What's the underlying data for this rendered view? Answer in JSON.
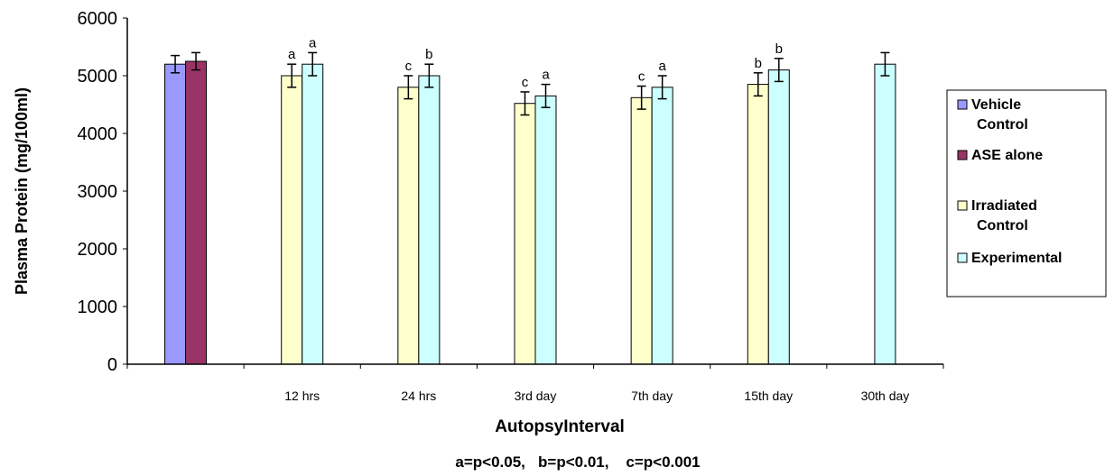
{
  "chart_data": {
    "type": "bar",
    "xlabel": "AutopsyInterval",
    "ylabel": "Plasma Protein (mg/100ml)",
    "ylim": [
      0,
      6000
    ],
    "yticks": [
      0,
      1000,
      2000,
      3000,
      4000,
      5000,
      6000
    ],
    "categories": [
      "",
      "12 hrs",
      "24 hrs",
      "3rd day",
      "7th day",
      "15th day",
      "30th day"
    ],
    "footnote": "a=p<0.05,   b=p<0.01,    c=p<0.001",
    "legend_position": "right",
    "series": [
      {
        "name": "Vehicle Control",
        "color": "#9999ff",
        "values": [
          5200,
          null,
          null,
          null,
          null,
          null,
          null
        ],
        "errors": [
          150,
          null,
          null,
          null,
          null,
          null,
          null
        ],
        "sig": [
          "",
          "",
          "",
          "",
          "",
          "",
          ""
        ]
      },
      {
        "name": "ASE alone",
        "color": "#993366",
        "values": [
          5250,
          null,
          null,
          null,
          null,
          null,
          null
        ],
        "errors": [
          150,
          null,
          null,
          null,
          null,
          null,
          null
        ],
        "sig": [
          "",
          "",
          "",
          "",
          "",
          "",
          ""
        ]
      },
      {
        "name": "Irradiated Control",
        "color": "#ffffcc",
        "values": [
          null,
          5000,
          4800,
          4520,
          4620,
          4850,
          null
        ],
        "errors": [
          null,
          200,
          200,
          200,
          200,
          200,
          null
        ],
        "sig": [
          "",
          "a",
          "c",
          "c",
          "c",
          "b",
          ""
        ]
      },
      {
        "name": "Experimental",
        "color": "#ccffff",
        "values": [
          null,
          5200,
          5000,
          4650,
          4800,
          5100,
          5200
        ],
        "errors": [
          null,
          200,
          200,
          200,
          200,
          200,
          200
        ],
        "sig": [
          "",
          "a",
          "b",
          "a",
          "a",
          "b",
          ""
        ]
      }
    ]
  }
}
